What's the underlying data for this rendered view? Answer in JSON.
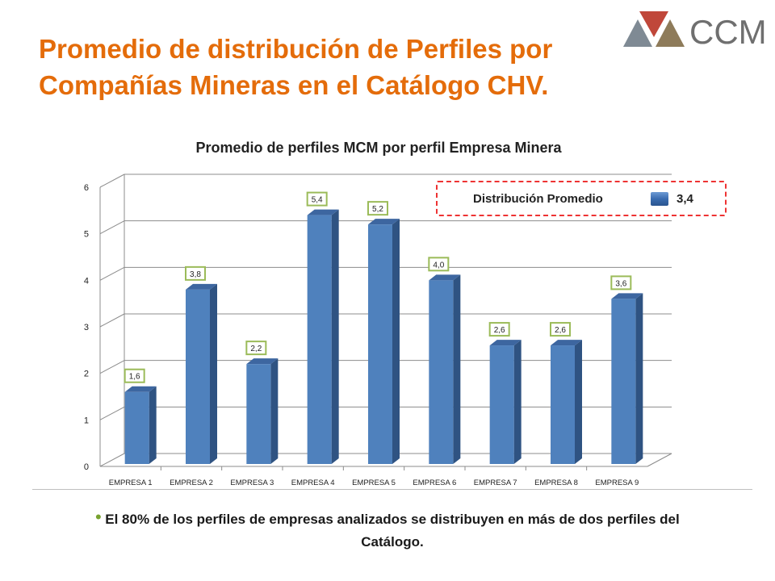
{
  "page": {
    "title": "Promedio de distribución de Perfiles por Compañías Mineras en el Catálogo CHV.",
    "logo_text": "CCM",
    "note": "El 80% de los perfiles de empresas analizados se distribuyen en más de dos perfiles del Catálogo.",
    "colors": {
      "title": "#e46c0a",
      "bar": "#4f81bd",
      "label_border": "#9bbb59",
      "legend_border": "#e33333"
    }
  },
  "chart_data": {
    "type": "bar",
    "title": "Promedio de perfiles MCM por perfil Empresa Minera",
    "categories": [
      "EMPRESA 1",
      "EMPRESA 2",
      "EMPRESA 3",
      "EMPRESA 4",
      "EMPRESA 5",
      "EMPRESA 6",
      "EMPRESA 7",
      "EMPRESA 8",
      "EMPRESA 9"
    ],
    "values": [
      1.6,
      3.8,
      2.2,
      5.4,
      5.2,
      4.0,
      2.6,
      2.6,
      3.6
    ],
    "data_labels": [
      "1,6",
      "3,8",
      "2,2",
      "5,4",
      "5,2",
      "4,0",
      "2,6",
      "2,6",
      "3,6"
    ],
    "yticks": [
      "0",
      "1",
      "2",
      "3",
      "4",
      "5",
      "6"
    ],
    "ylim": [
      0,
      6
    ],
    "grid": true,
    "legend": {
      "label": "Distribución  Promedio",
      "value": "3,4",
      "placement": "top-right"
    }
  }
}
